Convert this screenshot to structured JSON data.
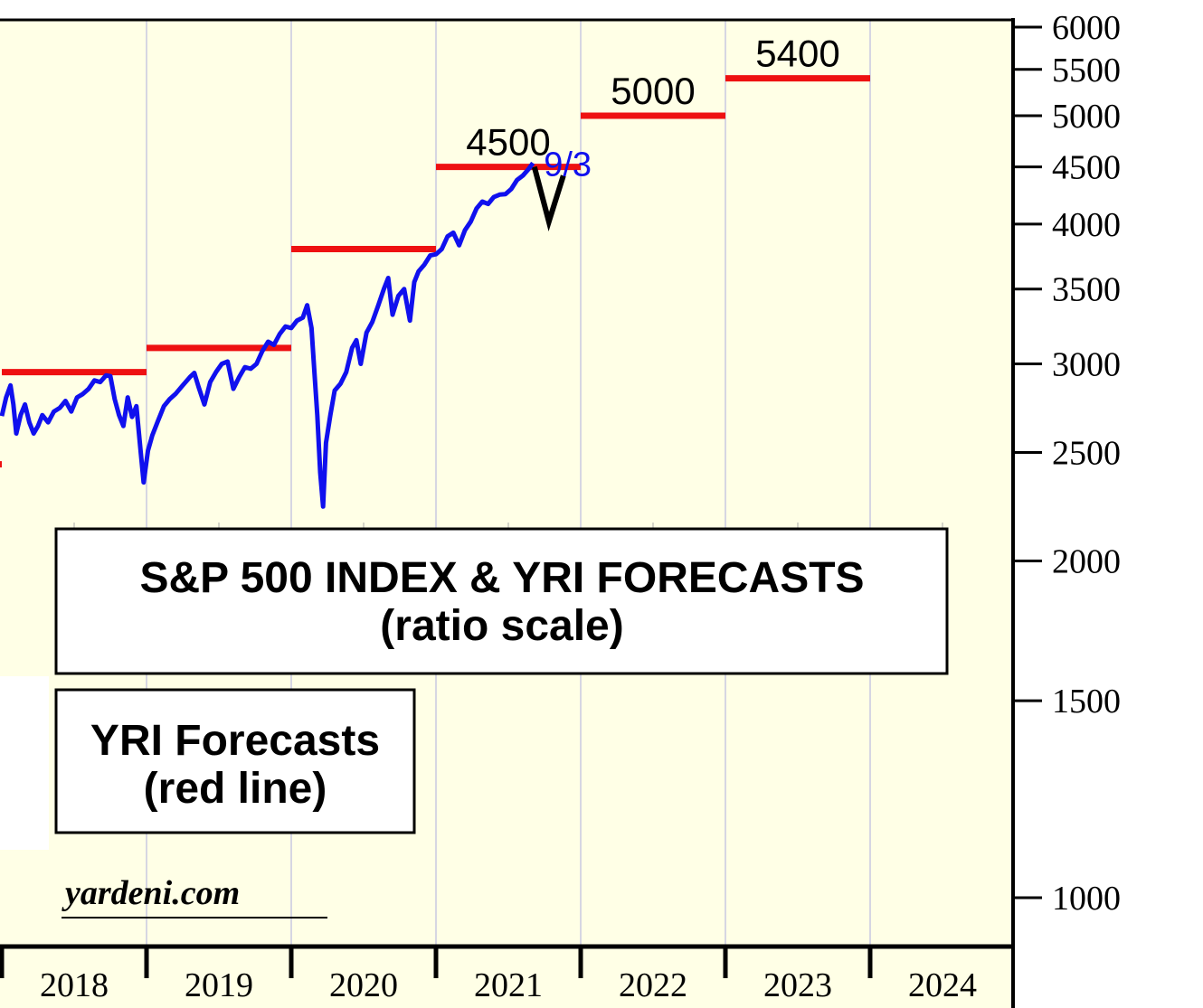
{
  "chart_data": {
    "type": "line",
    "title": "S&P 500 INDEX & YRI FORECASTS",
    "subtitle": "(ratio scale)",
    "legend_box": [
      "YRI Forecasts",
      "(red line)"
    ],
    "watermark": "yardeni.com",
    "x_range": [
      2018.0,
      2025.0
    ],
    "x_categories": [
      "2018",
      "2019",
      "2020",
      "2021",
      "2022",
      "2023",
      "2024"
    ],
    "y_scale": "log",
    "y_range": [
      900,
      6000
    ],
    "y_ticks": [
      1000,
      1500,
      2000,
      2500,
      3000,
      3500,
      4000,
      4500,
      5000,
      5500,
      6000
    ],
    "y_tick_labels": [
      "1000",
      "1500",
      "2000",
      "2500",
      "3000",
      "3500",
      "4000",
      "4500",
      "5000",
      "5500",
      "6000"
    ],
    "latest_date_label": "9/3",
    "forecasts": [
      {
        "x_start": 2018.0,
        "x_end": 2019.0,
        "value": 2950
      },
      {
        "x_start": 2019.0,
        "x_end": 2020.0,
        "value": 3100
      },
      {
        "x_start": 2020.0,
        "x_end": 2021.0,
        "value": 3800
      },
      {
        "x_start": 2021.0,
        "x_end": 2022.0,
        "value": 4500,
        "label": "4500"
      },
      {
        "x_start": 2022.0,
        "x_end": 2023.0,
        "value": 5000,
        "label": "5000"
      },
      {
        "x_start": 2023.0,
        "x_end": 2024.0,
        "value": 5400,
        "label": "5400"
      }
    ],
    "prior_forecast_stub": {
      "x_start": 2017.95,
      "x_end": 2018.0,
      "value": 2440
    },
    "correction_v": [
      [
        2021.68,
        4500
      ],
      [
        2021.78,
        4020
      ],
      [
        2021.88,
        4420
      ]
    ],
    "series": [
      {
        "name": "S&P 500 Index",
        "color": "#1010ee",
        "points": [
          [
            2018.0,
            2695
          ],
          [
            2018.03,
            2800
          ],
          [
            2018.06,
            2870
          ],
          [
            2018.08,
            2760
          ],
          [
            2018.1,
            2600
          ],
          [
            2018.13,
            2700
          ],
          [
            2018.16,
            2760
          ],
          [
            2018.19,
            2660
          ],
          [
            2018.22,
            2600
          ],
          [
            2018.25,
            2640
          ],
          [
            2018.28,
            2700
          ],
          [
            2018.32,
            2660
          ],
          [
            2018.36,
            2720
          ],
          [
            2018.4,
            2740
          ],
          [
            2018.44,
            2780
          ],
          [
            2018.48,
            2720
          ],
          [
            2018.52,
            2800
          ],
          [
            2018.56,
            2820
          ],
          [
            2018.6,
            2850
          ],
          [
            2018.64,
            2900
          ],
          [
            2018.68,
            2890
          ],
          [
            2018.72,
            2930
          ],
          [
            2018.75,
            2925
          ],
          [
            2018.78,
            2790
          ],
          [
            2018.81,
            2700
          ],
          [
            2018.84,
            2640
          ],
          [
            2018.87,
            2800
          ],
          [
            2018.9,
            2690
          ],
          [
            2018.93,
            2750
          ],
          [
            2018.96,
            2500
          ],
          [
            2018.98,
            2351
          ],
          [
            2019.01,
            2510
          ],
          [
            2019.04,
            2590
          ],
          [
            2019.08,
            2670
          ],
          [
            2019.12,
            2750
          ],
          [
            2019.16,
            2790
          ],
          [
            2019.2,
            2820
          ],
          [
            2019.25,
            2870
          ],
          [
            2019.3,
            2920
          ],
          [
            2019.33,
            2945
          ],
          [
            2019.36,
            2860
          ],
          [
            2019.4,
            2760
          ],
          [
            2019.44,
            2890
          ],
          [
            2019.48,
            2950
          ],
          [
            2019.52,
            3000
          ],
          [
            2019.56,
            3015
          ],
          [
            2019.6,
            2850
          ],
          [
            2019.64,
            2920
          ],
          [
            2019.68,
            2980
          ],
          [
            2019.72,
            2970
          ],
          [
            2019.76,
            3000
          ],
          [
            2019.8,
            3080
          ],
          [
            2019.84,
            3140
          ],
          [
            2019.88,
            3120
          ],
          [
            2019.92,
            3190
          ],
          [
            2019.96,
            3240
          ],
          [
            2020.0,
            3230
          ],
          [
            2020.04,
            3280
          ],
          [
            2020.08,
            3300
          ],
          [
            2020.11,
            3385
          ],
          [
            2020.14,
            3230
          ],
          [
            2020.16,
            2950
          ],
          [
            2020.18,
            2700
          ],
          [
            2020.2,
            2400
          ],
          [
            2020.22,
            2237
          ],
          [
            2020.24,
            2550
          ],
          [
            2020.27,
            2700
          ],
          [
            2020.3,
            2840
          ],
          [
            2020.34,
            2880
          ],
          [
            2020.38,
            2950
          ],
          [
            2020.42,
            3100
          ],
          [
            2020.45,
            3150
          ],
          [
            2020.48,
            3000
          ],
          [
            2020.52,
            3200
          ],
          [
            2020.56,
            3270
          ],
          [
            2020.6,
            3380
          ],
          [
            2020.64,
            3500
          ],
          [
            2020.67,
            3580
          ],
          [
            2020.7,
            3320
          ],
          [
            2020.74,
            3450
          ],
          [
            2020.78,
            3500
          ],
          [
            2020.82,
            3280
          ],
          [
            2020.85,
            3550
          ],
          [
            2020.88,
            3630
          ],
          [
            2020.92,
            3680
          ],
          [
            2020.96,
            3750
          ],
          [
            2021.0,
            3760
          ],
          [
            2021.04,
            3800
          ],
          [
            2021.08,
            3900
          ],
          [
            2021.12,
            3930
          ],
          [
            2021.16,
            3830
          ],
          [
            2021.2,
            3950
          ],
          [
            2021.24,
            4020
          ],
          [
            2021.28,
            4130
          ],
          [
            2021.32,
            4190
          ],
          [
            2021.36,
            4170
          ],
          [
            2021.4,
            4230
          ],
          [
            2021.44,
            4250
          ],
          [
            2021.48,
            4255
          ],
          [
            2021.52,
            4300
          ],
          [
            2021.56,
            4380
          ],
          [
            2021.6,
            4420
          ],
          [
            2021.64,
            4480
          ],
          [
            2021.67,
            4536
          ]
        ]
      }
    ]
  }
}
